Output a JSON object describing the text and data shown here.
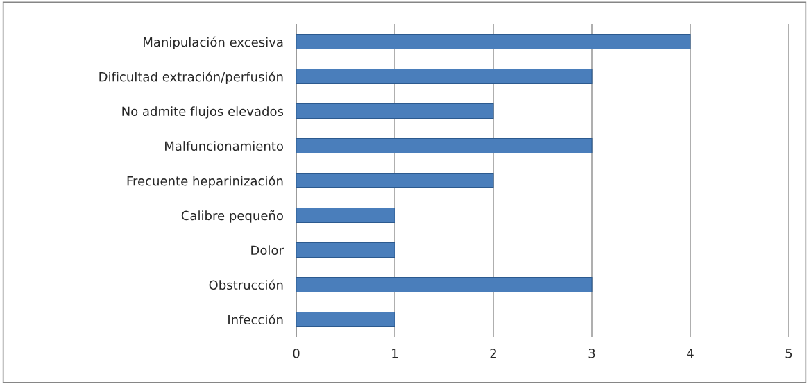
{
  "chart_data": {
    "type": "bar",
    "orientation": "horizontal",
    "categories": [
      "Manipulación excesiva",
      "Dificultad extración/perfusión",
      "No admite flujos elevados",
      "Malfuncionamiento",
      "Frecuente heparinización",
      "Calibre pequeño",
      "Dolor",
      "Obstrucción",
      "Infección"
    ],
    "values": [
      4,
      3,
      2,
      3,
      2,
      1,
      1,
      3,
      1
    ],
    "color": "#4a7ebb",
    "xlim": [
      0,
      5
    ],
    "xticks": [
      0,
      1,
      2,
      3,
      4,
      5
    ],
    "grid": "x",
    "legend": false
  }
}
